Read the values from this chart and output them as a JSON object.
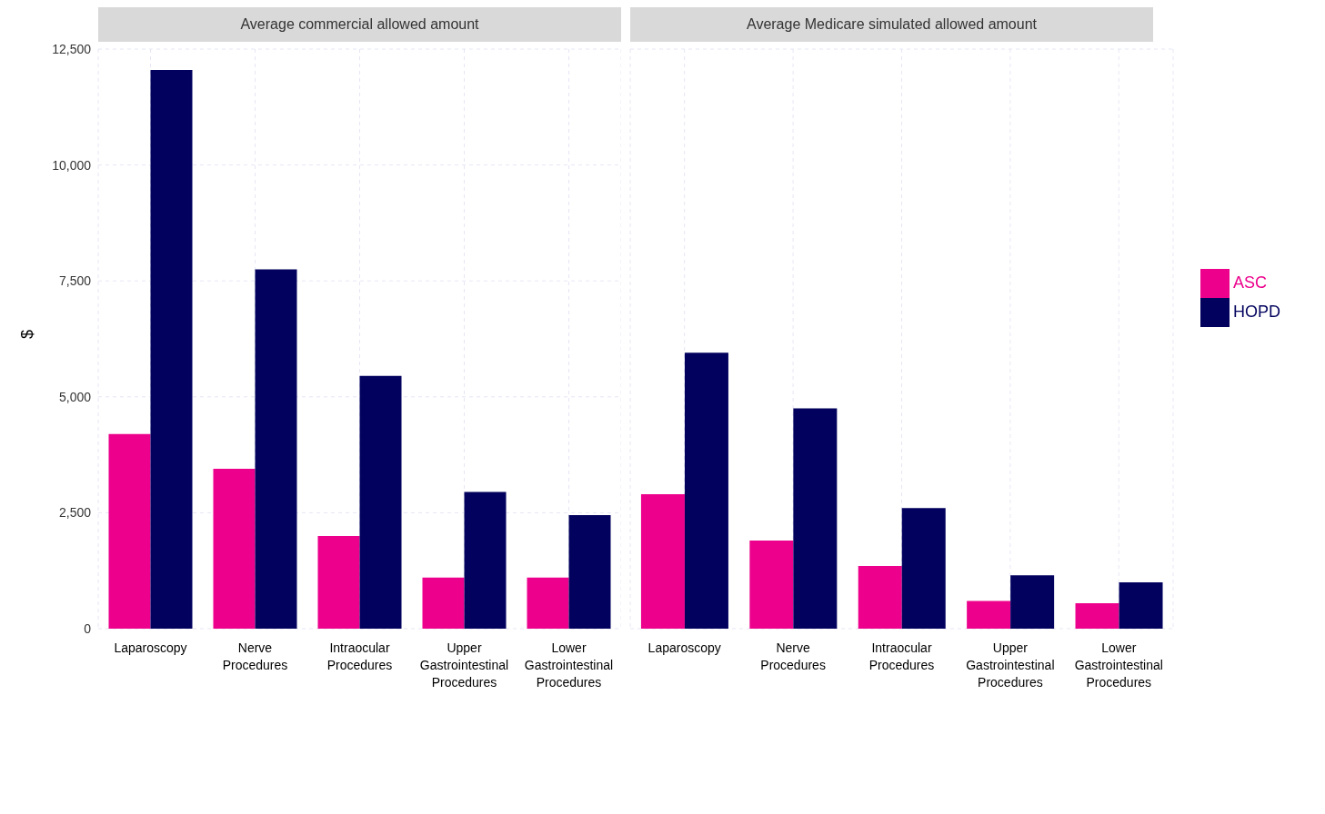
{
  "chart_data": [
    {
      "type": "bar",
      "title": "Average commercial allowed amount",
      "ylabel": "$",
      "categories": [
        "Laparoscopy",
        "Nerve Procedures",
        "Intraocular Procedures",
        "Upper Gastrointestinal Procedures",
        "Lower Gastrointestinal Procedures"
      ],
      "series": [
        {
          "color": "#ec008c",
          "values": [
            4200,
            3450,
            2000,
            1100,
            1100
          ]
        },
        {
          "color": "#02025e",
          "values": [
            12050,
            7750,
            5450,
            2950,
            2450
          ]
        }
      ],
      "ylim": [
        0,
        12500
      ],
      "yticks": [
        {
          "value": 0,
          "label": "0"
        },
        {
          "value": 2500,
          "label": "2,500"
        },
        {
          "value": 5000,
          "label": "5,000"
        },
        {
          "value": 7500,
          "label": "7,500"
        },
        {
          "value": 10000,
          "label": "10,000"
        },
        {
          "value": 12500,
          "label": "12,500"
        }
      ],
      "grid": true
    },
    {
      "type": "bar",
      "title": "Average Medicare simulated allowed amount",
      "categories": [
        "Laparoscopy",
        "Nerve Procedures",
        "Intraocular Procedures",
        "Upper Gastrointestinal Procedures",
        "Lower Gastrointestinal Procedures"
      ],
      "series": [
        {
          "name": "ASC",
          "color": "#ec008c",
          "values": [
            2900,
            1900,
            1350,
            600,
            550
          ]
        },
        {
          "name": "HOPD",
          "color": "#02025e",
          "values": [
            5950,
            4750,
            2600,
            1150,
            1000
          ]
        }
      ],
      "ylim": [
        0,
        12500
      ],
      "yticks": [
        {
          "value": 0,
          "label": null
        },
        {
          "value": 2500,
          "label": null
        },
        {
          "value": 5000,
          "label": null
        },
        {
          "value": 7500,
          "label": null
        },
        {
          "value": 10000,
          "label": null
        },
        {
          "value": 12500,
          "label": null
        }
      ],
      "grid": true,
      "tick_labels": "x",
      "legend": "right"
    }
  ]
}
